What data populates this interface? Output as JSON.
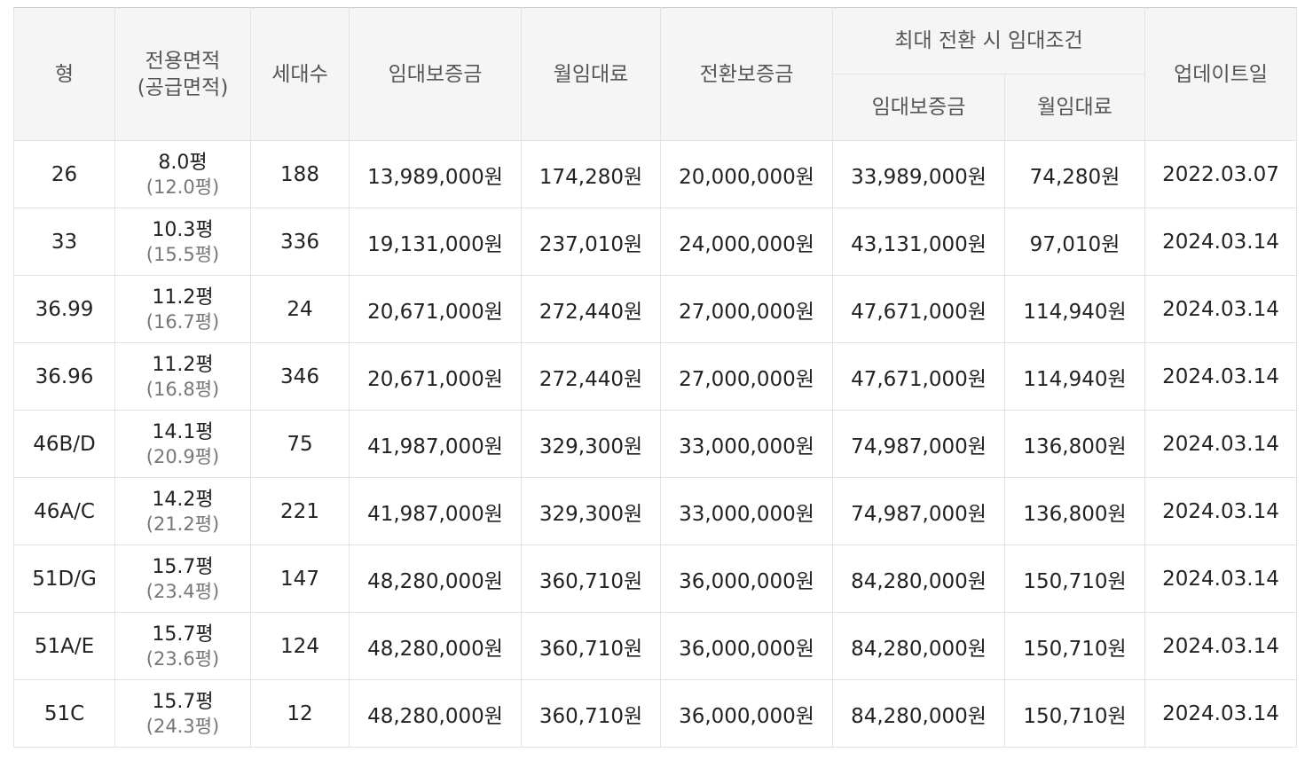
{
  "header": {
    "type": "형",
    "area_line1": "전용면적",
    "area_line2": "(공급면적)",
    "households": "세대수",
    "deposit": "임대보증금",
    "monthly_rent": "월임대료",
    "conversion_deposit": "전환보증금",
    "max_conversion_group": "최대 전환 시 임대조건",
    "max_deposit": "임대보증금",
    "max_monthly_rent": "월임대료",
    "updated": "업데이트일"
  },
  "rows": [
    {
      "type": "26",
      "area": "8.0평",
      "supply_area": "(12.0평)",
      "households": "188",
      "deposit": "13,989,000원",
      "monthly_rent": "174,280원",
      "conversion_deposit": "20,000,000원",
      "max_deposit": "33,989,000원",
      "max_monthly_rent": "74,280원",
      "updated": "2022.03.07"
    },
    {
      "type": "33",
      "area": "10.3평",
      "supply_area": "(15.5평)",
      "households": "336",
      "deposit": "19,131,000원",
      "monthly_rent": "237,010원",
      "conversion_deposit": "24,000,000원",
      "max_deposit": "43,131,000원",
      "max_monthly_rent": "97,010원",
      "updated": "2024.03.14"
    },
    {
      "type": "36.99",
      "area": "11.2평",
      "supply_area": "(16.7평)",
      "households": "24",
      "deposit": "20,671,000원",
      "monthly_rent": "272,440원",
      "conversion_deposit": "27,000,000원",
      "max_deposit": "47,671,000원",
      "max_monthly_rent": "114,940원",
      "updated": "2024.03.14"
    },
    {
      "type": "36.96",
      "area": "11.2평",
      "supply_area": "(16.8평)",
      "households": "346",
      "deposit": "20,671,000원",
      "monthly_rent": "272,440원",
      "conversion_deposit": "27,000,000원",
      "max_deposit": "47,671,000원",
      "max_monthly_rent": "114,940원",
      "updated": "2024.03.14"
    },
    {
      "type": "46B/D",
      "area": "14.1평",
      "supply_area": "(20.9평)",
      "households": "75",
      "deposit": "41,987,000원",
      "monthly_rent": "329,300원",
      "conversion_deposit": "33,000,000원",
      "max_deposit": "74,987,000원",
      "max_monthly_rent": "136,800원",
      "updated": "2024.03.14"
    },
    {
      "type": "46A/C",
      "area": "14.2평",
      "supply_area": "(21.2평)",
      "households": "221",
      "deposit": "41,987,000원",
      "monthly_rent": "329,300원",
      "conversion_deposit": "33,000,000원",
      "max_deposit": "74,987,000원",
      "max_monthly_rent": "136,800원",
      "updated": "2024.03.14"
    },
    {
      "type": "51D/G",
      "area": "15.7평",
      "supply_area": "(23.4평)",
      "households": "147",
      "deposit": "48,280,000원",
      "monthly_rent": "360,710원",
      "conversion_deposit": "36,000,000원",
      "max_deposit": "84,280,000원",
      "max_monthly_rent": "150,710원",
      "updated": "2024.03.14"
    },
    {
      "type": "51A/E",
      "area": "15.7평",
      "supply_area": "(23.6평)",
      "households": "124",
      "deposit": "48,280,000원",
      "monthly_rent": "360,710원",
      "conversion_deposit": "36,000,000원",
      "max_deposit": "84,280,000원",
      "max_monthly_rent": "150,710원",
      "updated": "2024.03.14"
    },
    {
      "type": "51C",
      "area": "15.7평",
      "supply_area": "(24.3평)",
      "households": "12",
      "deposit": "48,280,000원",
      "monthly_rent": "360,710원",
      "conversion_deposit": "36,000,000원",
      "max_deposit": "84,280,000원",
      "max_monthly_rent": "150,710원",
      "updated": "2024.03.14"
    }
  ],
  "colors": {
    "header_bg": "#f5f5f5",
    "border": "#e3e3e3",
    "text": "#222222",
    "subtext": "#777777"
  }
}
